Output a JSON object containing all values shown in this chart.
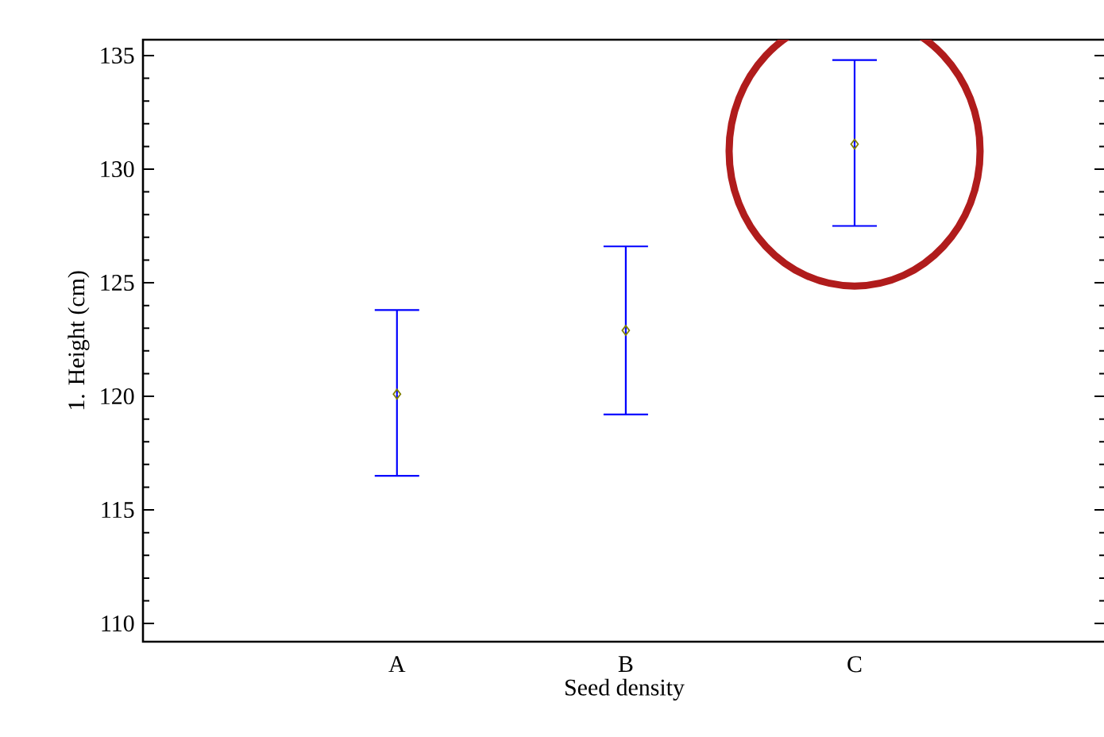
{
  "chart_data": {
    "type": "scatter",
    "xlabel": "Seed density",
    "ylabel": "1. Height (cm)",
    "categories": [
      "A",
      "B",
      "C"
    ],
    "values": [
      120.1,
      122.9,
      131.1
    ],
    "errors": [
      [
        116.5,
        123.8
      ],
      [
        119.2,
        126.6
      ],
      [
        127.5,
        134.8
      ]
    ],
    "color": "#808000",
    "marker": "diamond",
    "ylim": [
      109.2,
      135.7
    ],
    "yticks": [
      110,
      115,
      120,
      125,
      130,
      135
    ]
  }
}
